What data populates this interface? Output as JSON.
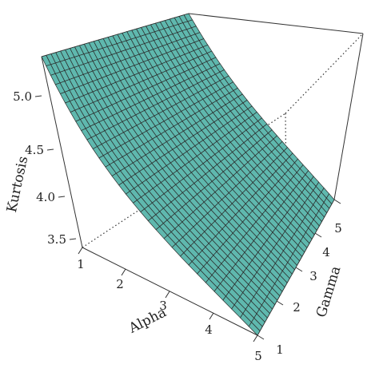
{
  "chart_data": {
    "type": "surface",
    "title": "",
    "xlabel": "Alpha",
    "ylabel": "Gamma",
    "zlabel": "Kurtosis",
    "x_ticks": [
      "1",
      "2",
      "3",
      "4",
      "5"
    ],
    "y_ticks": [
      "1",
      "2",
      "3",
      "4",
      "5"
    ],
    "z_ticks": [
      "3.5",
      "4.0",
      "4.5",
      "5.0"
    ],
    "xlim": [
      1,
      5
    ],
    "ylim": [
      1,
      5
    ],
    "zlim": [
      3.4,
      5.5
    ],
    "surface_corners": [
      {
        "alpha": 1,
        "gamma": 1,
        "kurtosis": 5.4
      },
      {
        "alpha": 1,
        "gamma": 5,
        "kurtosis": 5.4
      },
      {
        "alpha": 5,
        "gamma": 1,
        "kurtosis": 3.42
      },
      {
        "alpha": 5,
        "gamma": 5,
        "kurtosis": 3.42
      }
    ],
    "note_shape": "kurtosis decreases convexly with alpha, nearly constant in gamma",
    "surface_color": "#5fb8ae",
    "grid_line_color": "#2a2a2a",
    "grid_count": 31
  }
}
